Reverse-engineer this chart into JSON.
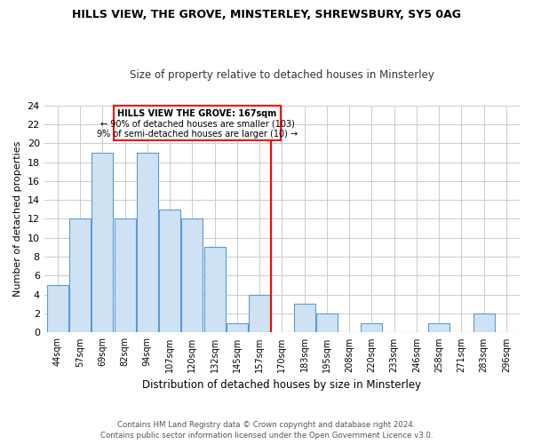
{
  "title": "HILLS VIEW, THE GROVE, MINSTERLEY, SHREWSBURY, SY5 0AG",
  "subtitle": "Size of property relative to detached houses in Minsterley",
  "xlabel": "Distribution of detached houses by size in Minsterley",
  "ylabel": "Number of detached properties",
  "categories": [
    "44sqm",
    "57sqm",
    "69sqm",
    "82sqm",
    "94sqm",
    "107sqm",
    "120sqm",
    "132sqm",
    "145sqm",
    "157sqm",
    "170sqm",
    "183sqm",
    "195sqm",
    "208sqm",
    "220sqm",
    "233sqm",
    "246sqm",
    "258sqm",
    "271sqm",
    "283sqm",
    "296sqm"
  ],
  "values": [
    5,
    12,
    19,
    12,
    19,
    13,
    12,
    9,
    1,
    4,
    0,
    3,
    2,
    0,
    1,
    0,
    0,
    1,
    0,
    2,
    0
  ],
  "bar_color": "#cfe2f3",
  "bar_edge_color": "#5b9bd5",
  "redline_index": 10,
  "redline_label": "HILLS VIEW THE GROVE: 167sqm",
  "annotation_line1": "← 90% of detached houses are smaller (103)",
  "annotation_line2": "9% of semi-detached houses are larger (10) →",
  "ylim": [
    0,
    24
  ],
  "yticks": [
    0,
    2,
    4,
    6,
    8,
    10,
    12,
    14,
    16,
    18,
    20,
    22,
    24
  ],
  "footer_line1": "Contains HM Land Registry data © Crown copyright and database right 2024.",
  "footer_line2": "Contains public sector information licensed under the Open Government Licence v3.0.",
  "background_color": "#ffffff",
  "grid_color": "#cccccc"
}
